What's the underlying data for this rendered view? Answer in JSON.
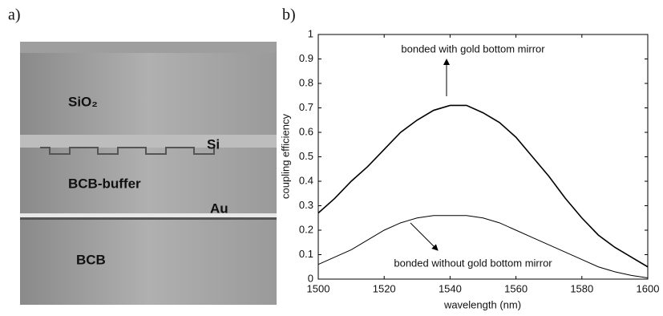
{
  "figure": {
    "panel_a_label": "a)",
    "panel_b_label": "b)",
    "image_labels": [
      "SiO₂",
      "Si",
      "BCB-buffer",
      "Au",
      "BCB"
    ]
  },
  "chart_data": {
    "type": "line",
    "x_label": "wavelength (nm)",
    "y_label": "coupling efficiency",
    "x": [
      1500,
      1505,
      1510,
      1515,
      1520,
      1525,
      1530,
      1535,
      1540,
      1545,
      1550,
      1555,
      1560,
      1565,
      1570,
      1575,
      1580,
      1585,
      1590,
      1595,
      1600
    ],
    "series": [
      {
        "name": "bonded with gold bottom mirror",
        "color": "#000000",
        "values": [
          0.27,
          0.33,
          0.4,
          0.46,
          0.53,
          0.6,
          0.65,
          0.69,
          0.71,
          0.71,
          0.68,
          0.64,
          0.58,
          0.5,
          0.42,
          0.33,
          0.25,
          0.18,
          0.13,
          0.09,
          0.05
        ]
      },
      {
        "name": "bonded without gold bottom mirror",
        "color": "#000000",
        "values": [
          0.06,
          0.09,
          0.12,
          0.16,
          0.2,
          0.23,
          0.25,
          0.26,
          0.26,
          0.26,
          0.25,
          0.23,
          0.2,
          0.17,
          0.14,
          0.11,
          0.08,
          0.05,
          0.03,
          0.015,
          0.005
        ]
      }
    ],
    "xlim": [
      1500,
      1600
    ],
    "xticks": [
      1500,
      1520,
      1540,
      1560,
      1580,
      1600
    ],
    "ylim": [
      0,
      1
    ],
    "yticks": [
      0,
      0.1,
      0.2,
      0.3,
      0.4,
      0.5,
      0.6,
      0.7,
      0.8,
      0.9,
      1
    ],
    "grid": false
  }
}
